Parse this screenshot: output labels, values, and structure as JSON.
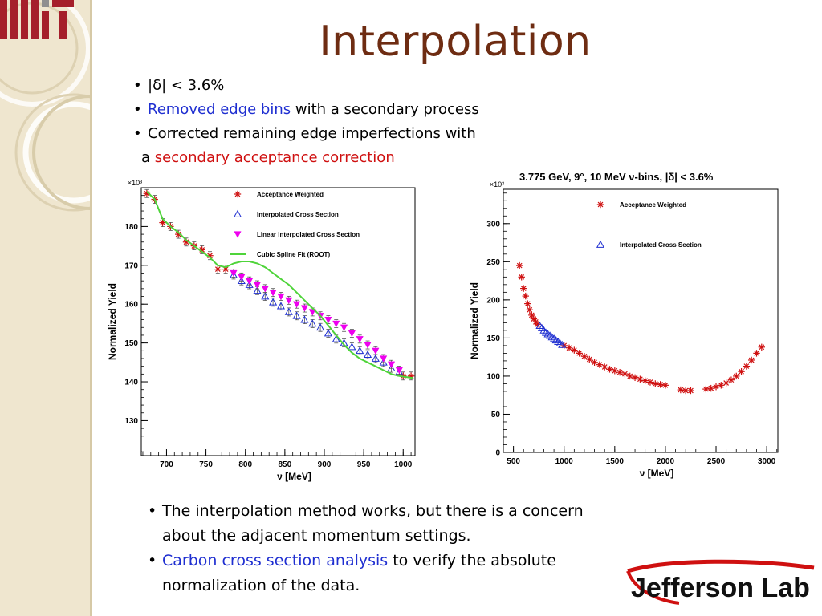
{
  "slide": {
    "title": "Interpolation",
    "top_bullets": [
      {
        "segments": [
          {
            "text": "|δ| < 3.6%",
            "color": "black"
          }
        ]
      },
      {
        "segments": [
          {
            "text": "Removed edge bins",
            "color": "blue"
          },
          {
            "text": " with a secondary process",
            "color": "black"
          }
        ]
      },
      {
        "segments": [
          {
            "text": "Corrected remaining edge imperfections with",
            "color": "black"
          }
        ],
        "continuation": [
          {
            "text": "a ",
            "color": "black"
          },
          {
            "text": "secondary acceptance correction",
            "color": "red"
          }
        ]
      }
    ],
    "bottom_bullets": [
      {
        "segments": [
          {
            "text": "The interpolation method works, but there is a concern",
            "color": "black"
          }
        ],
        "continuation": [
          {
            "text": "about the adjacent momentum settings.",
            "color": "black"
          }
        ]
      },
      {
        "segments": [
          {
            "text": "Carbon cross section analysis",
            "color": "blue"
          },
          {
            "text": " to verify the absolute",
            "color": "black"
          }
        ],
        "continuation": [
          {
            "text": "normalization of the data.",
            "color": "black"
          }
        ]
      }
    ],
    "logos": {
      "left": "MIT",
      "right": "Jefferson Lab"
    }
  },
  "colors": {
    "title": "#6e2c12",
    "blue": "#1f2fd1",
    "red": "#cf1010",
    "magenta": "#ee00ee",
    "green": "#4fd43a",
    "sidebar": "#efe6cf"
  },
  "chart_data": [
    {
      "type": "scatter",
      "title": "",
      "xlabel": "ν [MeV]",
      "ylabel": "Normalized Yield",
      "y_exponent_label": "×10³",
      "xlim": [
        668,
        1015
      ],
      "ylim": [
        121,
        190
      ],
      "xticks": [
        700,
        750,
        800,
        850,
        900,
        950,
        1000
      ],
      "yticks": [
        130,
        140,
        150,
        160,
        170,
        180
      ],
      "legend_position": "top-right",
      "series": [
        {
          "name": "Acceptance Weighted",
          "marker": "star",
          "color": "#cf1010",
          "x": [
            675,
            685,
            695,
            705,
            715,
            725,
            735,
            745,
            755,
            765,
            775,
            1000,
            1010
          ],
          "y": [
            188.5,
            187,
            181,
            180,
            178,
            176,
            175,
            174,
            172.5,
            169,
            169,
            141.5,
            141.5
          ]
        },
        {
          "name": "Interpolated Cross Section",
          "marker": "triangle-up-open",
          "color": "#1f2fd1",
          "x": [
            785,
            795,
            805,
            815,
            825,
            835,
            845,
            855,
            865,
            875,
            885,
            895,
            905,
            915,
            925,
            935,
            945,
            955,
            965,
            975,
            985,
            995
          ],
          "y": [
            167.5,
            166,
            165,
            163.5,
            162,
            160.5,
            159.5,
            158,
            157,
            156,
            155,
            154,
            152.5,
            151,
            150,
            149,
            148,
            147,
            146,
            145,
            143.5,
            142.5
          ]
        },
        {
          "name": "Linear Interpolated Cross Section",
          "marker": "triangle-down-filled",
          "color": "#ee00ee",
          "x": [
            785,
            795,
            805,
            815,
            825,
            835,
            845,
            855,
            865,
            875,
            885,
            895,
            905,
            915,
            925,
            935,
            945,
            955,
            965,
            975,
            985,
            995
          ],
          "y": [
            168,
            167,
            166,
            165,
            164,
            163,
            162,
            161,
            160,
            159,
            158,
            157,
            156,
            155,
            154,
            152.5,
            151,
            149.5,
            148,
            146,
            144.5,
            143
          ]
        },
        {
          "name": "Cubic Spline Fit (ROOT)",
          "marker": "line",
          "color": "#4fd43a",
          "x": [
            675,
            685,
            695,
            705,
            715,
            725,
            735,
            745,
            755,
            765,
            775,
            785,
            795,
            805,
            815,
            825,
            835,
            845,
            855,
            865,
            875,
            885,
            895,
            905,
            915,
            925,
            935,
            945,
            955,
            965,
            975,
            985,
            995,
            1005,
            1012
          ],
          "y": [
            189,
            187,
            182,
            180,
            178.5,
            176.5,
            175,
            173.5,
            172,
            170,
            169.5,
            170.5,
            171,
            171,
            170.5,
            169.5,
            168,
            166.5,
            165,
            163,
            161,
            159,
            157,
            154.5,
            152,
            149.5,
            147.5,
            146,
            145,
            144,
            143,
            142,
            141.5,
            141.2,
            141
          ]
        }
      ]
    },
    {
      "type": "scatter",
      "title": "3.775 GeV, 9°, 10 MeV ν-bins, |δ| < 3.6%",
      "xlabel": "ν [MeV]",
      "ylabel": "Normalized Yield",
      "y_exponent_label": "×10³",
      "xlim": [
        400,
        3110
      ],
      "ylim": [
        0,
        345
      ],
      "xticks": [
        500,
        1000,
        1500,
        2000,
        2500,
        3000
      ],
      "yticks": [
        0,
        50,
        100,
        150,
        200,
        250,
        300
      ],
      "legend_position": "top-right",
      "series": [
        {
          "name": "Acceptance Weighted",
          "marker": "star",
          "color": "#cf1010",
          "x": [
            560,
            580,
            600,
            620,
            640,
            660,
            680,
            700,
            720,
            740,
            1000,
            1050,
            1100,
            1150,
            1200,
            1250,
            1300,
            1350,
            1400,
            1450,
            1500,
            1550,
            1600,
            1650,
            1700,
            1750,
            1800,
            1850,
            1900,
            1950,
            2000,
            2150,
            2200,
            2250,
            2400,
            2450,
            2500,
            2550,
            2600,
            2650,
            2700,
            2750,
            2800,
            2850,
            2900,
            2950
          ],
          "y": [
            245,
            230,
            215,
            205,
            195,
            187,
            180,
            175,
            171,
            168,
            140,
            137,
            134,
            130,
            126,
            122,
            118,
            115,
            112,
            109,
            107,
            105,
            103,
            100,
            98,
            96,
            94,
            92,
            90,
            89,
            88,
            82,
            81,
            81,
            83,
            84,
            86,
            88,
            91,
            95,
            100,
            106,
            113,
            121,
            130,
            138
          ]
        },
        {
          "name": "Interpolated Cross Section",
          "marker": "triangle-up-open",
          "color": "#1f2fd1",
          "x": [
            760,
            780,
            800,
            820,
            840,
            860,
            880,
            900,
            920,
            940,
            960,
            980
          ],
          "y": [
            166,
            163,
            160,
            157,
            155,
            153,
            151,
            149,
            147,
            145,
            143,
            141
          ]
        }
      ]
    }
  ]
}
